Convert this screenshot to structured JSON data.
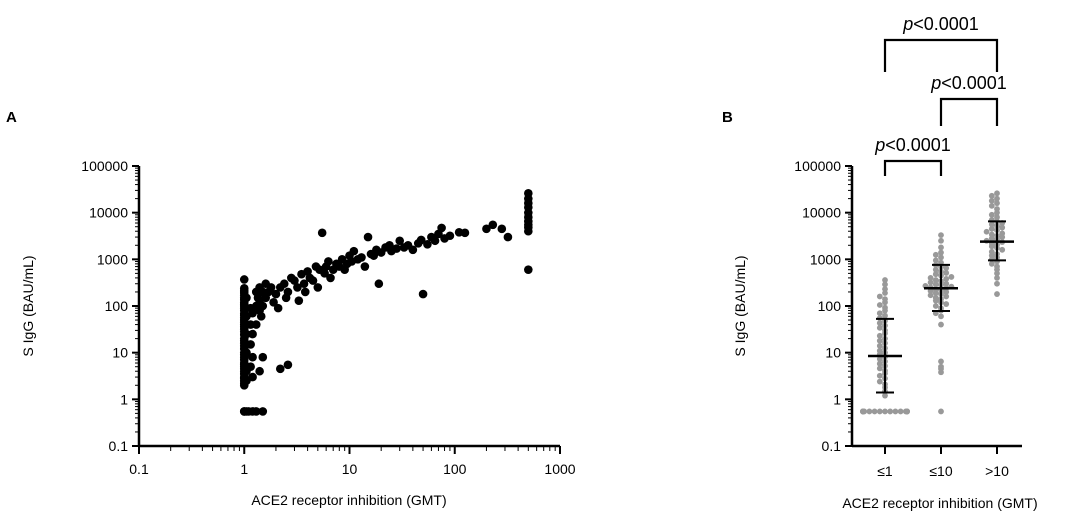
{
  "panels": {
    "a": {
      "letter": "A"
    },
    "b": {
      "letter": "B"
    }
  },
  "chart_data": [
    {
      "type": "scatter",
      "panel": "A",
      "xlabel": "ACE2 receptor inhibition (GMT)",
      "ylabel": "S IgG (BAU/mL)",
      "x_scale": "log",
      "y_scale": "log",
      "xlim": [
        0.1,
        1000
      ],
      "ylim": [
        0.1,
        100000
      ],
      "xticks": [
        "0.1",
        "1",
        "10",
        "100",
        "1000"
      ],
      "yticks": [
        "0.1",
        "1",
        "10",
        "100",
        "1000",
        "10000",
        "100000"
      ],
      "grid": false,
      "color": "#000000",
      "points": [
        [
          1,
          0.55
        ],
        [
          1,
          0.55
        ],
        [
          1.05,
          0.55
        ],
        [
          1.1,
          0.55
        ],
        [
          1.2,
          0.55
        ],
        [
          1.3,
          0.55
        ],
        [
          1.5,
          0.55
        ],
        [
          1,
          2
        ],
        [
          1,
          2.2
        ],
        [
          1,
          2.5
        ],
        [
          1,
          2.8
        ],
        [
          1,
          3
        ],
        [
          1,
          3.5
        ],
        [
          1,
          4
        ],
        [
          1,
          4.5
        ],
        [
          1,
          5
        ],
        [
          1,
          5.5
        ],
        [
          1,
          6
        ],
        [
          1,
          7
        ],
        [
          1,
          8
        ],
        [
          1,
          9
        ],
        [
          1,
          10
        ],
        [
          1,
          12
        ],
        [
          1,
          14
        ],
        [
          1,
          16
        ],
        [
          1,
          18
        ],
        [
          1,
          20
        ],
        [
          1,
          24
        ],
        [
          1,
          28
        ],
        [
          1,
          32
        ],
        [
          1,
          36
        ],
        [
          1,
          40
        ],
        [
          1,
          45
        ],
        [
          1,
          50
        ],
        [
          1,
          56
        ],
        [
          1,
          63
        ],
        [
          1,
          70
        ],
        [
          1,
          80
        ],
        [
          1,
          90
        ],
        [
          1,
          100
        ],
        [
          1,
          110
        ],
        [
          1,
          120
        ],
        [
          1,
          135
        ],
        [
          1,
          150
        ],
        [
          1,
          170
        ],
        [
          1,
          190
        ],
        [
          1,
          210
        ],
        [
          1,
          240
        ],
        [
          1,
          370
        ],
        [
          1.05,
          2.5
        ],
        [
          1.05,
          4
        ],
        [
          1.05,
          10
        ],
        [
          1.05,
          25
        ],
        [
          1.05,
          60
        ],
        [
          1.05,
          150
        ],
        [
          1.15,
          5
        ],
        [
          1.15,
          15
        ],
        [
          1.15,
          40
        ],
        [
          1.15,
          90
        ],
        [
          1.2,
          3
        ],
        [
          1.2,
          8
        ],
        [
          1.2,
          25
        ],
        [
          1.2,
          70
        ],
        [
          1.3,
          40
        ],
        [
          1.3,
          100
        ],
        [
          1.3,
          200
        ],
        [
          1.35,
          150
        ],
        [
          1.4,
          80
        ],
        [
          1.4,
          120
        ],
        [
          1.4,
          250
        ],
        [
          1.45,
          60
        ],
        [
          1.5,
          100
        ],
        [
          1.5,
          200
        ],
        [
          1.5,
          8
        ],
        [
          1.4,
          4
        ],
        [
          1.6,
          150
        ],
        [
          1.7,
          200
        ],
        [
          1.8,
          250
        ],
        [
          1.6,
          300
        ],
        [
          1.9,
          120
        ],
        [
          2,
          180
        ],
        [
          2.1,
          90
        ],
        [
          2.2,
          250
        ],
        [
          2.4,
          300
        ],
        [
          2.5,
          150
        ],
        [
          2.6,
          200
        ],
        [
          2.2,
          4.5
        ],
        [
          2.6,
          5.5
        ],
        [
          2.8,
          400
        ],
        [
          3,
          350
        ],
        [
          3.2,
          250
        ],
        [
          3.3,
          130
        ],
        [
          3.5,
          480
        ],
        [
          3.7,
          300
        ],
        [
          3.8,
          200
        ],
        [
          4,
          550
        ],
        [
          4.2,
          400
        ],
        [
          4.5,
          350
        ],
        [
          4.8,
          700
        ],
        [
          5,
          250
        ],
        [
          5.2,
          600
        ],
        [
          5.5,
          3700
        ],
        [
          5.8,
          500
        ],
        [
          6,
          700
        ],
        [
          6.3,
          900
        ],
        [
          6.6,
          400
        ],
        [
          7,
          600
        ],
        [
          7.5,
          800
        ],
        [
          8,
          700
        ],
        [
          8.5,
          1000
        ],
        [
          9,
          600
        ],
        [
          9.5,
          800
        ],
        [
          10,
          1200
        ],
        [
          10.5,
          900
        ],
        [
          11,
          1500
        ],
        [
          12,
          1000
        ],
        [
          13,
          1100
        ],
        [
          14,
          700
        ],
        [
          15,
          3000
        ],
        [
          16,
          1300
        ],
        [
          17,
          1200
        ],
        [
          18,
          1600
        ],
        [
          19,
          300
        ],
        [
          20,
          1400
        ],
        [
          22,
          1800
        ],
        [
          24,
          2000
        ],
        [
          25,
          1500
        ],
        [
          28,
          1700
        ],
        [
          30,
          2500
        ],
        [
          33,
          1800
        ],
        [
          36,
          2000
        ],
        [
          40,
          1600
        ],
        [
          45,
          2200
        ],
        [
          48,
          2600
        ],
        [
          50,
          180
        ],
        [
          55,
          2100
        ],
        [
          60,
          3000
        ],
        [
          65,
          2500
        ],
        [
          70,
          3500
        ],
        [
          75,
          4700
        ],
        [
          80,
          2800
        ],
        [
          90,
          3200
        ],
        [
          110,
          3800
        ],
        [
          125,
          3700
        ],
        [
          200,
          4500
        ],
        [
          230,
          5500
        ],
        [
          280,
          4500
        ],
        [
          320,
          3000
        ],
        [
          500,
          600
        ],
        [
          500,
          4000
        ],
        [
          500,
          4800
        ],
        [
          500,
          5500
        ],
        [
          500,
          6500
        ],
        [
          500,
          8000
        ],
        [
          500,
          10000
        ],
        [
          500,
          13000
        ],
        [
          500,
          16000
        ],
        [
          500,
          20000
        ],
        [
          500,
          26000
        ]
      ]
    },
    {
      "type": "scatter",
      "panel": "B",
      "xlabel": "ACE2 receptor inhibition (GMT)",
      "ylabel": "S IgG (BAU/mL)",
      "y_scale": "log",
      "ylim": [
        0.1,
        100000
      ],
      "yticks": [
        "0.1",
        "1",
        "10",
        "100",
        "1000",
        "10000",
        "100000"
      ],
      "categories": [
        "≤1",
        "≤10",
        ">10"
      ],
      "grid": false,
      "color": "#999999",
      "summary": [
        {
          "category": "≤1",
          "center": 8.5,
          "lower": 1.4,
          "upper": 53
        },
        {
          "category": "≤10",
          "center": 240,
          "lower": 78,
          "upper": 760
        },
        {
          "category": ">10",
          "center": 2400,
          "lower": 950,
          "upper": 6500
        }
      ],
      "values": {
        "≤1": [
          0.55,
          0.55,
          0.55,
          0.55,
          0.55,
          0.55,
          0.55,
          0.55,
          0.55,
          0.55,
          0.55,
          0.55,
          0.55,
          0.55,
          0.55,
          0.55,
          0.55,
          0.55,
          0.55,
          0.55,
          1.2,
          1.5,
          1.8,
          2.1,
          2.4,
          2.8,
          3.2,
          3.6,
          4.1,
          4.6,
          5.2,
          5.8,
          6.5,
          7.3,
          8.2,
          9.2,
          10,
          11,
          12.5,
          14,
          16,
          18,
          20,
          23,
          26,
          30,
          34,
          38,
          43,
          48,
          55,
          62,
          70,
          80,
          92,
          105,
          120,
          140,
          160,
          190,
          230,
          290,
          360
        ],
        "≤10": [
          0.55,
          3.8,
          4.5,
          5,
          6.5,
          40,
          60,
          70,
          80,
          90,
          100,
          110,
          120,
          130,
          140,
          150,
          160,
          170,
          180,
          190,
          200,
          210,
          220,
          230,
          240,
          250,
          260,
          270,
          280,
          290,
          300,
          320,
          340,
          360,
          380,
          400,
          420,
          450,
          480,
          510,
          550,
          600,
          650,
          700,
          760,
          850,
          950,
          1100,
          1250,
          1400,
          1800,
          2500,
          3300
        ],
        ">10": [
          180,
          300,
          400,
          500,
          600,
          700,
          800,
          900,
          1000,
          1100,
          1200,
          1300,
          1450,
          1600,
          1750,
          1900,
          2050,
          2200,
          2350,
          2500,
          2650,
          2800,
          3000,
          3200,
          3400,
          3600,
          3900,
          4200,
          4500,
          4800,
          5200,
          5600,
          6000,
          6500,
          7000,
          8000,
          9000,
          10000,
          12000,
          14000,
          16000,
          18000,
          20000,
          23000,
          26000
        ]
      },
      "comparisons": [
        {
          "groups": [
            "≤1",
            "≤10"
          ],
          "p_prefix": "p",
          "p_value": "<0.0001"
        },
        {
          "groups": [
            "≤10",
            ">10"
          ],
          "p_prefix": "p",
          "p_value": "<0.0001"
        },
        {
          "groups": [
            "≤1",
            ">10"
          ],
          "p_prefix": "p",
          "p_value": "<0.0001"
        }
      ]
    }
  ]
}
